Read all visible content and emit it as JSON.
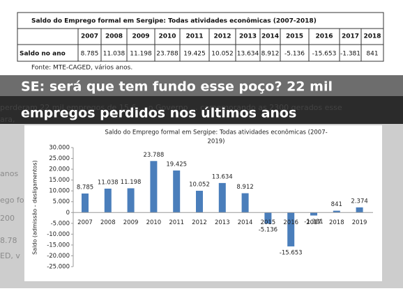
{
  "table": {
    "title": "Saldo do Emprego formal em Sergipe: Todas atividades econômicas (2007-2018)",
    "header": [
      "2007",
      "2008",
      "2009",
      "2010",
      "2011",
      "2012",
      "2013",
      "2014",
      "2015",
      "2016",
      "2017",
      "2018"
    ],
    "row_label": "Saldo no ano",
    "row": [
      "8.785",
      "11.038",
      "11.198",
      "23.788",
      "19.425",
      "10.052",
      "13.634",
      "8.912",
      "-5.136",
      "-15.653",
      "-1.381",
      "841"
    ],
    "source": "Fonte: MTE-CAGED, vários anos."
  },
  "headline": [
    "SE: será que tem fundo esse poço? 22 mil",
    "empregos perdidos nos últimos anos"
  ],
  "background_fragments": [
    "perderam 22 mil empregos de 15.6 ... o Governo ... comemorando as 2300 gerados esse",
    "ara,",
    "anos",
    "ego for",
    "200",
    "8.78",
    "ED, v"
  ],
  "chart_data": {
    "type": "bar",
    "title": [
      "Saldo do Emprego formal em Sergipe: Todas atividades econômicas (2007-",
      "2019)"
    ],
    "y_label": "Saldo (admissão - desligamentos)",
    "categories": [
      "2007",
      "2008",
      "2009",
      "2010",
      "2011",
      "2012",
      "2013",
      "2014",
      "2015",
      "2016",
      "2017",
      "2018",
      "2019"
    ],
    "values": [
      8785,
      11038,
      11198,
      23788,
      19425,
      10052,
      13634,
      8912,
      -5136,
      -15653,
      -1381,
      841,
      2374
    ],
    "value_labels": [
      "8.785",
      "11.038",
      "11.198",
      "23.788",
      "19.425",
      "10.052",
      "13.634",
      "8.912",
      "-5.136",
      "-15.653",
      "-1.381",
      "841",
      "2.374"
    ],
    "color": "#4a7ebb",
    "ylim": [
      -25000,
      30000
    ],
    "yticks": [
      {
        "value": -25000,
        "label": "-25.000"
      },
      {
        "value": -20000,
        "label": "-20.000"
      },
      {
        "value": -15000,
        "label": "-15.000"
      },
      {
        "value": -10000,
        "label": "-10.000"
      },
      {
        "value": -5000,
        "label": "-5.000"
      },
      0,
      {
        "value": 5000,
        "label": "5.000"
      },
      {
        "value": 10000,
        "label": "10.000"
      },
      {
        "value": 15000,
        "label": "15.000"
      },
      {
        "value": 20000,
        "label": "20.000"
      },
      {
        "value": 25000,
        "label": "25.000"
      },
      {
        "value": 30000,
        "label": "30.000"
      }
    ]
  }
}
